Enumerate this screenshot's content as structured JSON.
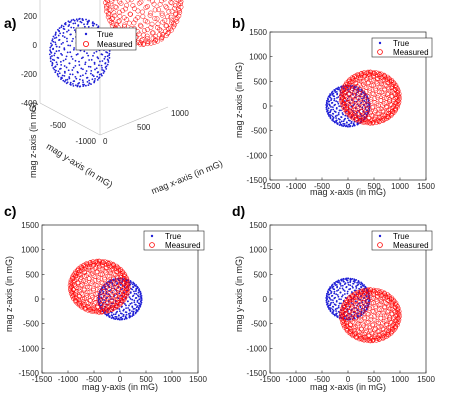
{
  "colors": {
    "true": "#1f1fd6",
    "measured": "#ff0000",
    "axis": "#262626"
  },
  "chart_data": [
    {
      "panel": "a)",
      "type": "scatter",
      "view": "3d",
      "xlabel": "mag x-axis (in mG)",
      "ylabel": "mag y-axis (in mG)",
      "zlabel": "mag z-axis (in mG)",
      "xticks": [
        "0",
        "500",
        "1000"
      ],
      "yticks": [
        "-1000",
        "-500",
        "0"
      ],
      "zticks": [
        "-400",
        "-200",
        "0",
        "200",
        "400",
        "600",
        "800"
      ],
      "zlim": [
        -400,
        800
      ],
      "legend": {
        "position": "top",
        "entries": [
          "True",
          "Measured"
        ]
      },
      "series": [
        {
          "name": "True",
          "marker": "dot",
          "center": [
            0,
            0,
            0
          ],
          "radius": 400
        },
        {
          "name": "Measured",
          "marker": "circle",
          "center": [
            400,
            -300,
            250
          ],
          "radius": 550
        }
      ]
    },
    {
      "panel": "b)",
      "type": "scatter",
      "xlabel": "mag x-axis (in mG)",
      "ylabel": "mag z-axis (in mG)",
      "xlim": [
        -1500,
        1500
      ],
      "ylim": [
        -1500,
        1500
      ],
      "xticks": [
        -1500,
        -1000,
        -500,
        0,
        500,
        1000,
        1500
      ],
      "yticks": [
        -1500,
        -1000,
        -500,
        0,
        500,
        1000,
        1500
      ],
      "legend": {
        "position": "top-right",
        "entries": [
          "True",
          "Measured"
        ]
      },
      "series": [
        {
          "name": "True",
          "marker": "dot",
          "center": [
            0,
            0
          ],
          "rx": 420,
          "ry": 420
        },
        {
          "name": "Measured",
          "marker": "circle",
          "center": [
            430,
            170
          ],
          "rx": 560,
          "ry": 520
        }
      ]
    },
    {
      "panel": "c)",
      "type": "scatter",
      "xlabel": "mag y-axis (in mG)",
      "ylabel": "mag z-axis (in mG)",
      "xlim": [
        -1500,
        1500
      ],
      "ylim": [
        -1500,
        1500
      ],
      "xticks": [
        -1500,
        -1000,
        -500,
        0,
        500,
        1000,
        1500
      ],
      "yticks": [
        -1500,
        -1000,
        -500,
        0,
        500,
        1000,
        1500
      ],
      "legend": {
        "position": "top-right",
        "entries": [
          "True",
          "Measured"
        ]
      },
      "series": [
        {
          "name": "True",
          "marker": "dot",
          "center": [
            0,
            0
          ],
          "rx": 420,
          "ry": 420
        },
        {
          "name": "Measured",
          "marker": "circle",
          "center": [
            -400,
            250
          ],
          "rx": 560,
          "ry": 520
        }
      ]
    },
    {
      "panel": "d)",
      "type": "scatter",
      "xlabel": "mag x-axis (in mG)",
      "ylabel": "mag y-axis (in mG)",
      "xlim": [
        -1500,
        1500
      ],
      "ylim": [
        -1500,
        1500
      ],
      "xticks": [
        -1500,
        -1000,
        -500,
        0,
        500,
        1000,
        1500
      ],
      "yticks": [
        -1500,
        -1000,
        -500,
        0,
        500,
        1000,
        1500
      ],
      "legend": {
        "position": "top-right",
        "entries": [
          "True",
          "Measured"
        ]
      },
      "series": [
        {
          "name": "True",
          "marker": "dot",
          "center": [
            0,
            0
          ],
          "rx": 420,
          "ry": 420
        },
        {
          "name": "Measured",
          "marker": "circle",
          "center": [
            430,
            -330
          ],
          "rx": 560,
          "ry": 520
        }
      ]
    }
  ]
}
